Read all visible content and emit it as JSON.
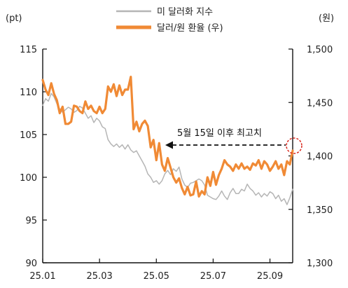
{
  "chart_data": {
    "type": "line",
    "left_axis_unit": "(pt)",
    "right_axis_unit": "(원)",
    "left_ticks": [
      "115",
      "110",
      "105",
      "100",
      "95",
      "90"
    ],
    "right_ticks": [
      "1,500",
      "1,450",
      "1,400",
      "1,350",
      "1,300"
    ],
    "x_ticks": [
      "25.01",
      "25.03",
      "25.05",
      "25.07",
      "25.09"
    ],
    "ylim_left": [
      90,
      115
    ],
    "ylim_right": [
      1300,
      1500
    ],
    "x_range": [
      0,
      8.8
    ],
    "annotation": "5월 15일 이후 최고치",
    "series": [
      {
        "name": "미 달러화 지수",
        "axis": "left",
        "color": "#b5b5b5",
        "x": [
          0,
          0.1,
          0.2,
          0.3,
          0.4,
          0.5,
          0.6,
          0.7,
          0.8,
          0.9,
          1.0,
          1.1,
          1.2,
          1.3,
          1.4,
          1.5,
          1.6,
          1.7,
          1.8,
          1.9,
          2.0,
          2.1,
          2.2,
          2.3,
          2.4,
          2.5,
          2.6,
          2.7,
          2.8,
          2.9,
          3.0,
          3.1,
          3.2,
          3.3,
          3.4,
          3.5,
          3.6,
          3.7,
          3.8,
          3.9,
          4.0,
          4.1,
          4.2,
          4.3,
          4.4,
          4.5,
          4.6,
          4.7,
          4.8,
          4.9,
          5.0,
          5.1,
          5.2,
          5.3,
          5.4,
          5.5,
          5.6,
          5.7,
          5.8,
          5.9,
          6.0,
          6.1,
          6.2,
          6.3,
          6.4,
          6.5,
          6.6,
          6.7,
          6.8,
          6.9,
          7.0,
          7.1,
          7.2,
          7.3,
          7.4,
          7.5,
          7.6,
          7.7,
          7.8,
          7.9,
          8.0,
          8.1,
          8.2,
          8.3,
          8.4,
          8.5,
          8.6,
          8.7,
          8.8
        ],
        "values": [
          108.4,
          109.2,
          108.9,
          109.8,
          109.4,
          108.6,
          108.0,
          107.6,
          107.9,
          108.2,
          108.0,
          107.6,
          107.8,
          108.3,
          108.1,
          107.5,
          106.9,
          107.2,
          106.4,
          106.9,
          106.6,
          105.9,
          105.7,
          104.4,
          103.9,
          103.6,
          103.9,
          103.5,
          103.8,
          103.3,
          103.8,
          103.2,
          102.9,
          103.1,
          102.5,
          101.9,
          101.3,
          100.4,
          100.0,
          99.4,
          99.6,
          99.2,
          99.6,
          100.4,
          100.8,
          100.3,
          101.0,
          100.7,
          101.2,
          99.8,
          99.1,
          98.8,
          99.3,
          99.4,
          99.6,
          99.8,
          99.6,
          99.1,
          97.9,
          97.7,
          97.5,
          97.4,
          97.8,
          98.4,
          97.8,
          97.4,
          98.2,
          98.7,
          98.1,
          98.1,
          98.6,
          98.4,
          99.2,
          98.7,
          98.4,
          97.9,
          98.2,
          97.7,
          98.1,
          97.8,
          98.3,
          98.1,
          97.5,
          97.9,
          97.2,
          97.5,
          96.8,
          97.6,
          98.6
        ]
      },
      {
        "name": "달러/원 환율 (우)",
        "axis": "right",
        "color": "#f08a35",
        "x": [
          0,
          0.1,
          0.2,
          0.3,
          0.4,
          0.5,
          0.6,
          0.7,
          0.8,
          0.9,
          1.0,
          1.1,
          1.2,
          1.3,
          1.4,
          1.5,
          1.6,
          1.7,
          1.8,
          1.9,
          2.0,
          2.1,
          2.2,
          2.3,
          2.4,
          2.5,
          2.6,
          2.7,
          2.8,
          2.9,
          3.0,
          3.1,
          3.2,
          3.3,
          3.4,
          3.5,
          3.6,
          3.7,
          3.8,
          3.9,
          4.0,
          4.1,
          4.2,
          4.3,
          4.4,
          4.5,
          4.6,
          4.7,
          4.8,
          4.9,
          5.0,
          5.1,
          5.2,
          5.3,
          5.4,
          5.5,
          5.6,
          5.7,
          5.8,
          5.9,
          6.0,
          6.1,
          6.2,
          6.3,
          6.4,
          6.5,
          6.6,
          6.7,
          6.8,
          6.9,
          7.0,
          7.1,
          7.2,
          7.3,
          7.4,
          7.5,
          7.6,
          7.7,
          7.8,
          7.9,
          8.0,
          8.1,
          8.2,
          8.3,
          8.4,
          8.5,
          8.6,
          8.7,
          8.8
        ],
        "values": [
          1471,
          1462,
          1457,
          1468,
          1458,
          1452,
          1440,
          1446,
          1430,
          1430,
          1432,
          1447,
          1446,
          1442,
          1440,
          1451,
          1444,
          1447,
          1442,
          1440,
          1446,
          1440,
          1444,
          1465,
          1460,
          1467,
          1456,
          1466,
          1457,
          1462,
          1462,
          1474,
          1425,
          1432,
          1423,
          1430,
          1433,
          1428,
          1408,
          1415,
          1396,
          1412,
          1392,
          1386,
          1398,
          1389,
          1380,
          1375,
          1379,
          1370,
          1364,
          1371,
          1363,
          1364,
          1376,
          1362,
          1367,
          1364,
          1380,
          1372,
          1385,
          1373,
          1382,
          1388,
          1396,
          1392,
          1390,
          1386,
          1392,
          1388,
          1393,
          1388,
          1390,
          1387,
          1393,
          1391,
          1396,
          1388,
          1395,
          1392,
          1386,
          1390,
          1395,
          1388,
          1392,
          1382,
          1395,
          1392,
          1405
        ]
      }
    ]
  }
}
